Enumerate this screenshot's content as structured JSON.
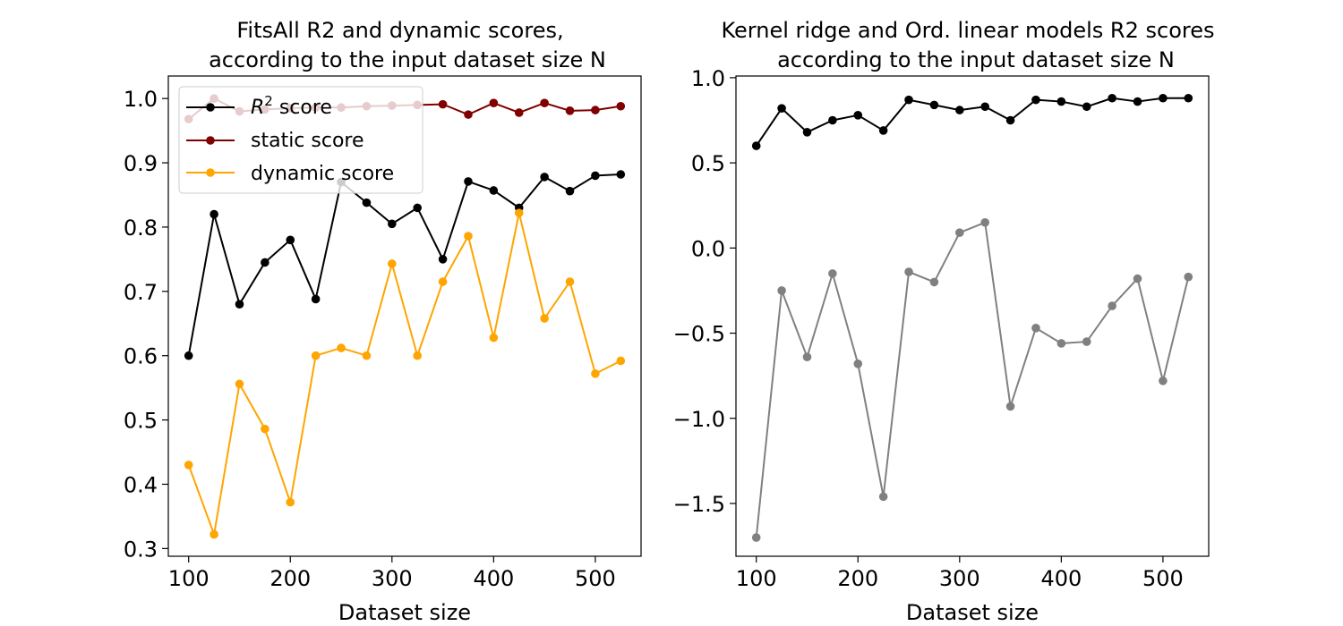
{
  "chart_data": [
    {
      "type": "line",
      "title_line1": "FitsAll R2 and dynamic scores,",
      "title_line2": "according to the input dataset size N",
      "xlabel": "Dataset size",
      "ylabel": "",
      "x": [
        100,
        125,
        150,
        175,
        200,
        225,
        250,
        275,
        300,
        325,
        350,
        375,
        400,
        425,
        450,
        475,
        500,
        525
      ],
      "xlim": [
        80,
        545
      ],
      "ylim": [
        0.288,
        1.035
      ],
      "xticks": [
        100,
        200,
        300,
        400,
        500
      ],
      "xtick_labels": [
        "100",
        "200",
        "300",
        "400",
        "500"
      ],
      "yticks": [
        0.3,
        0.4,
        0.5,
        0.6,
        0.7,
        0.8,
        0.9,
        1.0
      ],
      "ytick_labels": [
        "0.3",
        "0.4",
        "0.5",
        "0.6",
        "0.7",
        "0.8",
        "0.9",
        "1.0"
      ],
      "legend_position": "top-left",
      "series": [
        {
          "name": "R² score",
          "name_base": "R",
          "name_sup": "2",
          "name_rest": " score",
          "color": "#000000",
          "values": [
            0.6,
            0.82,
            0.68,
            0.745,
            0.78,
            0.688,
            0.87,
            0.838,
            0.805,
            0.83,
            0.75,
            0.871,
            0.857,
            0.83,
            0.878,
            0.856,
            0.88,
            0.882
          ]
        },
        {
          "name": "static score",
          "color": "#800000",
          "values": [
            0.968,
            1.0,
            0.98,
            0.983,
            0.985,
            0.986,
            0.986,
            0.988,
            0.989,
            0.99,
            0.991,
            0.975,
            0.993,
            0.978,
            0.993,
            0.981,
            0.982,
            0.988
          ]
        },
        {
          "name": "dynamic score",
          "color": "#FFA500",
          "values": [
            0.43,
            0.322,
            0.556,
            0.486,
            0.372,
            0.6,
            0.612,
            0.6,
            0.743,
            0.6,
            0.715,
            0.786,
            0.628,
            0.822,
            0.658,
            0.715,
            0.572,
            0.592
          ]
        }
      ]
    },
    {
      "type": "line",
      "title_line1": "Kernel ridge and Ord. linear models R2 scores",
      "title_line2": "according to the input dataset size N",
      "xlabel": "Dataset size",
      "ylabel": "",
      "x": [
        100,
        125,
        150,
        175,
        200,
        225,
        250,
        275,
        300,
        325,
        350,
        375,
        400,
        425,
        450,
        475,
        500,
        525
      ],
      "xlim": [
        80,
        545
      ],
      "ylim": [
        -1.81,
        1.01
      ],
      "xticks": [
        100,
        200,
        300,
        400,
        500
      ],
      "xtick_labels": [
        "100",
        "200",
        "300",
        "400",
        "500"
      ],
      "yticks": [
        -1.5,
        -1.0,
        -0.5,
        0.0,
        0.5,
        1.0
      ],
      "ytick_labels": [
        "−1.5",
        "−1.0",
        "−0.5",
        "0.0",
        "0.5",
        "1.0"
      ],
      "series": [
        {
          "color": "#000000",
          "values": [
            0.6,
            0.82,
            0.68,
            0.75,
            0.78,
            0.69,
            0.87,
            0.84,
            0.81,
            0.83,
            0.75,
            0.87,
            0.86,
            0.83,
            0.88,
            0.86,
            0.88,
            0.88
          ]
        },
        {
          "color": "#808080",
          "values": [
            -1.7,
            -0.25,
            -0.64,
            -0.15,
            -0.68,
            -1.46,
            -0.14,
            -0.2,
            0.09,
            0.15,
            -0.93,
            -0.47,
            -0.56,
            -0.55,
            -0.34,
            -0.18,
            -0.78,
            -0.17
          ]
        }
      ]
    }
  ]
}
